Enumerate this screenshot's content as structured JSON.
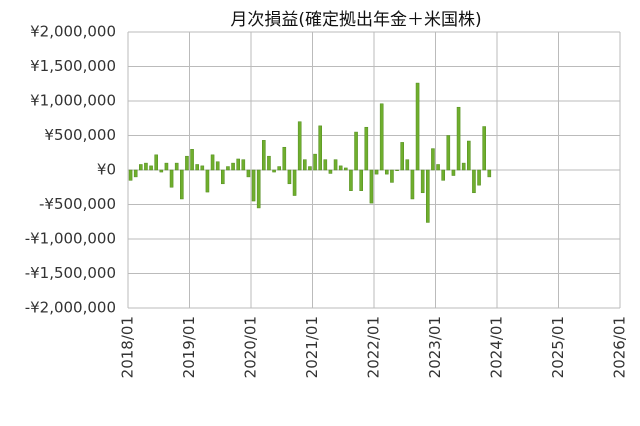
{
  "chart_data": {
    "type": "bar",
    "title": "月次損益(確定拠出年金＋米国株)",
    "color": "#6fae2e",
    "grid": true,
    "x": [
      "2018/01",
      "2018/02",
      "2018/03",
      "2018/04",
      "2018/05",
      "2018/06",
      "2018/07",
      "2018/08",
      "2018/09",
      "2018/10",
      "2018/11",
      "2018/12",
      "2019/01",
      "2019/02",
      "2019/03",
      "2019/04",
      "2019/05",
      "2019/06",
      "2019/07",
      "2019/08",
      "2019/09",
      "2019/10",
      "2019/11",
      "2019/12",
      "2020/01",
      "2020/02",
      "2020/03",
      "2020/04",
      "2020/05",
      "2020/06",
      "2020/07",
      "2020/08",
      "2020/09",
      "2020/10",
      "2020/11",
      "2020/12",
      "2021/01",
      "2021/02",
      "2021/03",
      "2021/04",
      "2021/05",
      "2021/06",
      "2021/07",
      "2021/08",
      "2021/09",
      "2021/10",
      "2021/11",
      "2021/12",
      "2022/01",
      "2022/02",
      "2022/03",
      "2022/04",
      "2022/05",
      "2022/06",
      "2022/07",
      "2022/08",
      "2022/09",
      "2022/10",
      "2022/11",
      "2022/12",
      "2023/01",
      "2023/02",
      "2023/03",
      "2023/04",
      "2023/05",
      "2023/06",
      "2023/07",
      "2023/08",
      "2023/09",
      "2023/10",
      "2023/11"
    ],
    "values": [
      -150000,
      -100000,
      80000,
      100000,
      60000,
      220000,
      -30000,
      100000,
      -250000,
      100000,
      -420000,
      200000,
      300000,
      80000,
      60000,
      -320000,
      220000,
      120000,
      -200000,
      50000,
      100000,
      160000,
      150000,
      -100000,
      -450000,
      -550000,
      430000,
      200000,
      -30000,
      50000,
      330000,
      -200000,
      -370000,
      700000,
      150000,
      50000,
      230000,
      640000,
      150000,
      -50000,
      150000,
      60000,
      30000,
      -300000,
      550000,
      -300000,
      620000,
      -480000,
      -60000,
      960000,
      -60000,
      -180000,
      -10000,
      400000,
      150000,
      -420000,
      1260000,
      -330000,
      -760000,
      310000,
      80000,
      -150000,
      500000,
      -80000,
      910000,
      100000,
      420000,
      -330000,
      -220000,
      630000,
      -100000
    ],
    "xlim": [
      "2018/01",
      "2026/01"
    ],
    "xticks": [
      "2018/01",
      "2019/01",
      "2020/01",
      "2021/01",
      "2022/01",
      "2023/01",
      "2024/01",
      "2025/01",
      "2026/01"
    ],
    "ylim": [
      -2000000,
      2000000
    ],
    "yticks": [
      {
        "value": -2000000,
        "label": "-¥2,000,000"
      },
      {
        "value": -1500000,
        "label": "-¥1,500,000"
      },
      {
        "value": -1000000,
        "label": "-¥1,000,000"
      },
      {
        "value": -500000,
        "label": "-¥500,000"
      },
      {
        "value": 0,
        "label": "¥0"
      },
      {
        "value": 500000,
        "label": "¥500,000"
      },
      {
        "value": 1000000,
        "label": "¥1,000,000"
      },
      {
        "value": 1500000,
        "label": "¥1,500,000"
      },
      {
        "value": 2000000,
        "label": "¥2,000,000"
      }
    ]
  }
}
